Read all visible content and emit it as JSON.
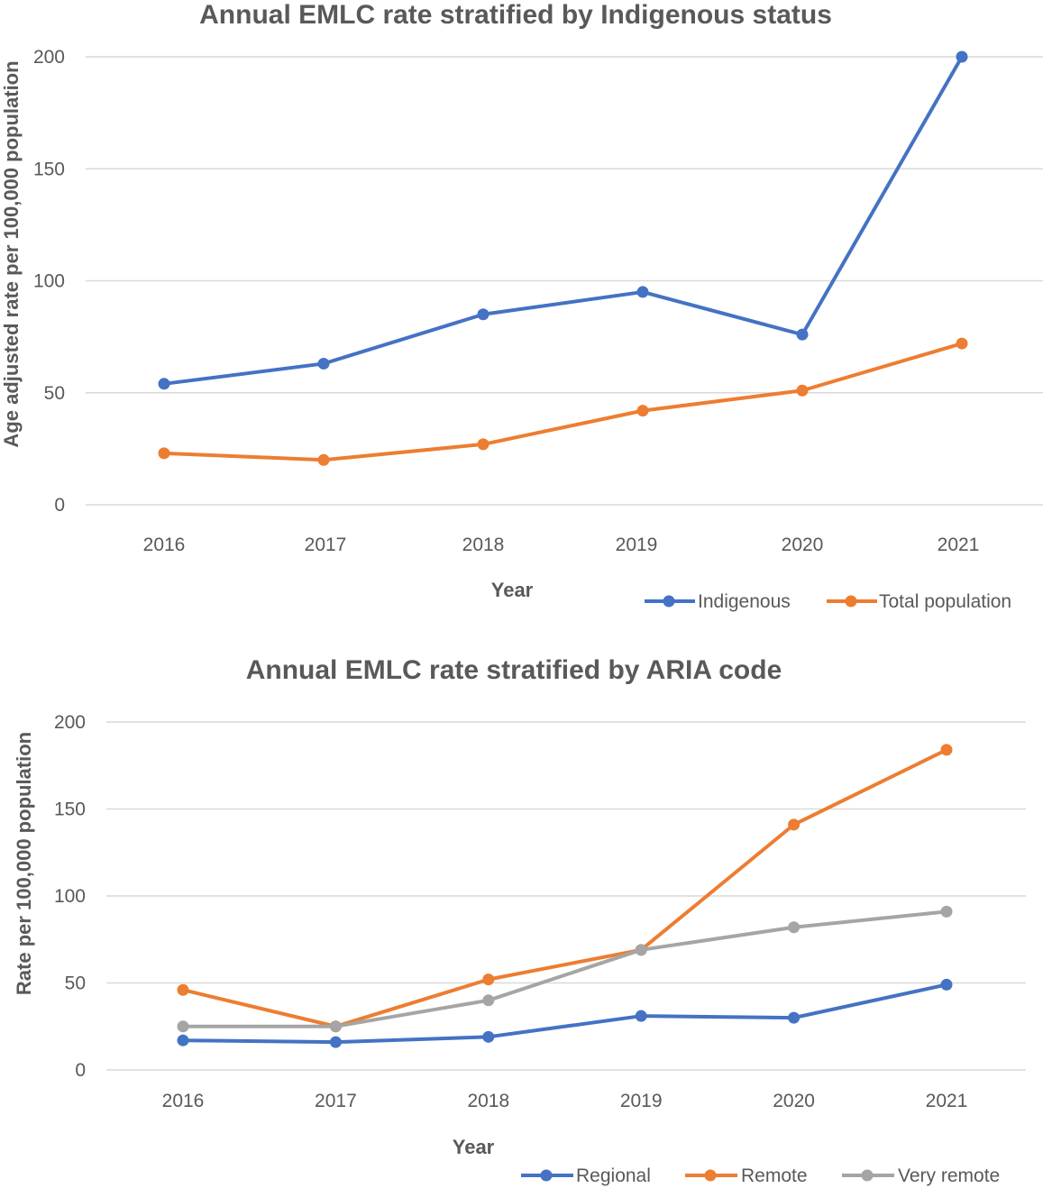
{
  "chart_data": [
    {
      "type": "line",
      "title": "Annual EMLC rate stratified by Indigenous status",
      "xlabel": "Year",
      "ylabel": "Age adjusted rate per 100,000 population",
      "categories": [
        "2016",
        "2017",
        "2018",
        "2019",
        "2020",
        "2021"
      ],
      "ylim": [
        0,
        200
      ],
      "yticks": [
        0,
        50,
        100,
        150,
        200
      ],
      "grid": true,
      "legend": "bottom-right",
      "series": [
        {
          "name": "Indigenous",
          "color": "#4472C4",
          "values": [
            54,
            63,
            85,
            95,
            76,
            200
          ]
        },
        {
          "name": "Total population",
          "color": "#ED7D31",
          "values": [
            23,
            20,
            27,
            42,
            51,
            72
          ]
        }
      ]
    },
    {
      "type": "line",
      "title": "Annual EMLC rate stratified by ARIA code",
      "xlabel": "Year",
      "ylabel": "Rate per 100,000 population",
      "categories": [
        "2016",
        "2017",
        "2018",
        "2019",
        "2020",
        "2021"
      ],
      "ylim": [
        0,
        200
      ],
      "yticks": [
        0,
        50,
        100,
        150,
        200
      ],
      "grid": true,
      "legend": "bottom",
      "series": [
        {
          "name": "Regional",
          "color": "#4472C4",
          "values": [
            17,
            16,
            19,
            31,
            30,
            49
          ]
        },
        {
          "name": "Remote",
          "color": "#ED7D31",
          "values": [
            46,
            25,
            52,
            69,
            141,
            184
          ]
        },
        {
          "name": "Very remote",
          "color": "#A5A5A5",
          "values": [
            25,
            25,
            40,
            69,
            82,
            91
          ]
        }
      ]
    }
  ]
}
